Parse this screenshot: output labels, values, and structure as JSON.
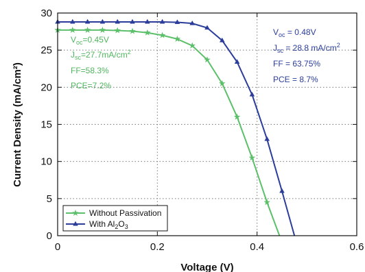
{
  "chart_data": {
    "type": "line",
    "xlabel": "Voltage (V)",
    "ylabel": "Current Density (mA/cm²)",
    "xlim": [
      0,
      0.6
    ],
    "ylim": [
      0,
      30
    ],
    "x_ticks": [
      "0",
      "0.2",
      "0.4",
      "0.6"
    ],
    "y_ticks": [
      "0",
      "5",
      "10",
      "15",
      "20",
      "25",
      "30"
    ],
    "grid": "dotted",
    "legend_position": "bottom-left",
    "series": [
      {
        "name": "Without Passivation",
        "color": "#5cbf6a",
        "marker": "star",
        "points": [
          [
            0.0,
            27.7
          ],
          [
            0.03,
            27.7
          ],
          [
            0.06,
            27.7
          ],
          [
            0.09,
            27.7
          ],
          [
            0.12,
            27.65
          ],
          [
            0.15,
            27.55
          ],
          [
            0.18,
            27.35
          ],
          [
            0.21,
            27.0
          ],
          [
            0.24,
            26.5
          ],
          [
            0.27,
            25.6
          ],
          [
            0.3,
            23.7
          ],
          [
            0.33,
            20.5
          ],
          [
            0.36,
            16.0
          ],
          [
            0.39,
            10.5
          ],
          [
            0.42,
            4.5
          ],
          [
            0.445,
            0.0
          ]
        ]
      },
      {
        "name": "With Al2O3",
        "color": "#2a3d9a",
        "marker": "triangle",
        "points": [
          [
            0.0,
            28.8
          ],
          [
            0.03,
            28.8
          ],
          [
            0.06,
            28.8
          ],
          [
            0.09,
            28.8
          ],
          [
            0.12,
            28.8
          ],
          [
            0.15,
            28.8
          ],
          [
            0.18,
            28.8
          ],
          [
            0.21,
            28.8
          ],
          [
            0.24,
            28.75
          ],
          [
            0.27,
            28.6
          ],
          [
            0.3,
            28.0
          ],
          [
            0.33,
            26.3
          ],
          [
            0.36,
            23.4
          ],
          [
            0.39,
            19.0
          ],
          [
            0.42,
            13.0
          ],
          [
            0.45,
            6.0
          ],
          [
            0.475,
            0.0
          ]
        ]
      }
    ],
    "annotations": {
      "without": {
        "voc": "V",
        "voc_sub": "oc",
        "voc_val": "=0.45V",
        "jsc": "J",
        "jsc_sub": "sc",
        "jsc_val": "=27.7mA/cm",
        "jsc_sup": "2",
        "ff": "FF=58.3%",
        "pce": "PCE=7.2%"
      },
      "with": {
        "voc": "V",
        "voc_sub": "oc",
        "voc_val": " = 0.48V",
        "jsc": "J",
        "jsc_sub": "sc",
        "jsc_val": " = 28.8 mA/cm",
        "jsc_sup": "2",
        "ff": "FF = 63.75%",
        "pce": "PCE = 8.7%"
      }
    },
    "legend": {
      "without_label": "Without Passivation",
      "with_prefix": "With Al",
      "with_sub1": "2",
      "with_mid": "O",
      "with_sub2": "3"
    }
  }
}
